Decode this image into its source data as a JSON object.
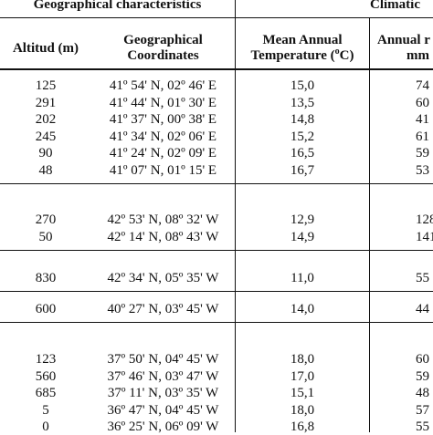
{
  "header": {
    "group_geo": "Geographical characteristics",
    "group_climatic": "Climatic",
    "col_altitude": "Altitud (m)",
    "col_coords_line1": "Geographical",
    "col_coords_line2": "Coordinates",
    "col_temp_line1": "Mean Annual",
    "col_temp_line2_prefix": "Temperature (",
    "col_temp_line2_sup": "o",
    "col_temp_line2_suffix": "C)",
    "col_rain_line1": "Annual r",
    "col_rain_line2": "mm"
  },
  "groups": [
    {
      "rows": [
        {
          "alt": "125",
          "coord": "41º 54' N, 02º 46' E",
          "temp": "15,0",
          "rain": "74"
        },
        {
          "alt": "291",
          "coord": "41º 44' N, 01º 30' E",
          "temp": "13,5",
          "rain": "60"
        },
        {
          "alt": "202",
          "coord": "41º 37' N, 00º 38' E",
          "temp": "14,8",
          "rain": "41"
        },
        {
          "alt": "245",
          "coord": "41º 34' N, 02º 06' E",
          "temp": "15,2",
          "rain": "61"
        },
        {
          "alt": "90",
          "coord": "41º 24' N, 02º 09' E",
          "temp": "16,5",
          "rain": "59"
        },
        {
          "alt": "48",
          "coord": "41º 07' N, 01º 15' E",
          "temp": "16,7",
          "rain": "53"
        }
      ]
    },
    {
      "rows": [
        {
          "alt": "270",
          "coord": "42º 53' N, 08º 32' W",
          "temp": "12,9",
          "rain": "128"
        },
        {
          "alt": "50",
          "coord": "42º 14' N, 08º 43' W",
          "temp": "14,9",
          "rain": "141"
        }
      ]
    },
    {
      "rows": [
        {
          "alt": "830",
          "coord": "42º 34' N, 05º 35' W",
          "temp": "11,0",
          "rain": "55"
        }
      ]
    },
    {
      "rows": [
        {
          "alt": "600",
          "coord": "40º 27' N, 03º 45' W",
          "temp": "14,0",
          "rain": "44"
        }
      ]
    },
    {
      "rows": [
        {
          "alt": "123",
          "coord": "37º 50' N, 04º 45' W",
          "temp": "18,0",
          "rain": "60"
        },
        {
          "alt": "560",
          "coord": "37º 46' N, 03º 47' W",
          "temp": "17,0",
          "rain": "59"
        },
        {
          "alt": "685",
          "coord": "37º 11' N, 03º 35' W",
          "temp": "15,1",
          "rain": "48"
        },
        {
          "alt": "5",
          "coord": "36º 47' N, 04º 45' W",
          "temp": "18,0",
          "rain": "57"
        },
        {
          "alt": "0",
          "coord": "36º 25' N, 06º 09' W",
          "temp": "16,8",
          "rain": "55"
        }
      ]
    }
  ]
}
